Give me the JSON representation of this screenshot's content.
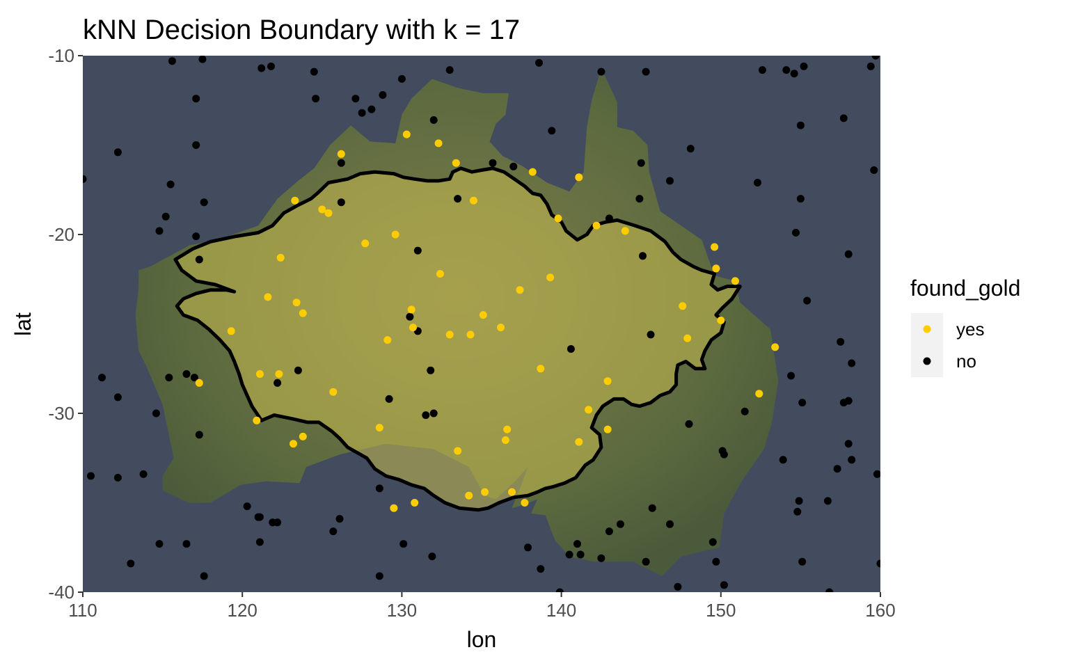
{
  "chart_data": {
    "type": "scatter",
    "title": "kNN Decision Boundary with k =  17",
    "xlabel": "lon",
    "ylabel": "lat",
    "xlim": [
      110,
      160
    ],
    "ylim": [
      -40,
      -10
    ],
    "x_ticks": [
      "110",
      "120",
      "130",
      "140",
      "150",
      "160"
    ],
    "y_ticks": [
      "-10",
      "-20",
      "-30",
      "-40"
    ],
    "grid": false,
    "background": "Australia map image",
    "legend": {
      "title": "found_gold",
      "position": "right",
      "entries": [
        {
          "label": "yes",
          "color": "#FFCC00"
        },
        {
          "label": "no",
          "color": "#000000"
        }
      ]
    },
    "series": [
      {
        "name": "yes",
        "color": "#FFCC00",
        "points": [
          [
            130.3,
            -14.4
          ],
          [
            132.3,
            -14.9
          ],
          [
            126.2,
            -15.5
          ],
          [
            133.4,
            -16.0
          ],
          [
            138.2,
            -16.5
          ],
          [
            141.1,
            -16.8
          ],
          [
            123.3,
            -18.1
          ],
          [
            125.0,
            -18.6
          ],
          [
            125.4,
            -18.8
          ],
          [
            134.5,
            -18.1
          ],
          [
            139.8,
            -19.1
          ],
          [
            142.2,
            -19.5
          ],
          [
            144.0,
            -19.8
          ],
          [
            127.7,
            -20.5
          ],
          [
            129.6,
            -20.0
          ],
          [
            149.6,
            -20.7
          ],
          [
            122.4,
            -21.3
          ],
          [
            149.7,
            -21.9
          ],
          [
            132.4,
            -22.2
          ],
          [
            139.3,
            -22.4
          ],
          [
            150.9,
            -22.6
          ],
          [
            137.4,
            -23.1
          ],
          [
            121.6,
            -23.5
          ],
          [
            123.4,
            -23.8
          ],
          [
            147.6,
            -24.0
          ],
          [
            123.8,
            -24.4
          ],
          [
            130.6,
            -24.2
          ],
          [
            130.7,
            -25.2
          ],
          [
            135.1,
            -24.5
          ],
          [
            119.3,
            -25.4
          ],
          [
            133.0,
            -25.6
          ],
          [
            134.3,
            -25.6
          ],
          [
            136.2,
            -25.2
          ],
          [
            150.0,
            -24.8
          ],
          [
            147.9,
            -25.8
          ],
          [
            129.1,
            -25.9
          ],
          [
            153.4,
            -26.3
          ],
          [
            138.7,
            -27.5
          ],
          [
            121.1,
            -27.8
          ],
          [
            122.3,
            -27.8
          ],
          [
            117.3,
            -28.3
          ],
          [
            142.9,
            -28.2
          ],
          [
            152.4,
            -28.9
          ],
          [
            125.7,
            -28.8
          ],
          [
            141.7,
            -29.8
          ],
          [
            120.9,
            -30.4
          ],
          [
            128.6,
            -30.8
          ],
          [
            136.6,
            -30.9
          ],
          [
            142.9,
            -30.9
          ],
          [
            123.2,
            -31.7
          ],
          [
            123.8,
            -31.3
          ],
          [
            136.5,
            -31.5
          ],
          [
            141.1,
            -31.6
          ],
          [
            133.5,
            -32.1
          ],
          [
            135.2,
            -34.4
          ],
          [
            136.9,
            -34.4
          ],
          [
            134.2,
            -34.6
          ],
          [
            130.8,
            -35.0
          ],
          [
            129.5,
            -35.3
          ],
          [
            137.7,
            -35.0
          ]
        ]
      },
      {
        "name": "no",
        "color": "#000000",
        "points": [
          [
            115.6,
            -10.3
          ],
          [
            117.5,
            -10.2
          ],
          [
            121.2,
            -10.7
          ],
          [
            121.8,
            -10.6
          ],
          [
            124.5,
            -10.9
          ],
          [
            130.0,
            -11.3
          ],
          [
            133.0,
            -10.8
          ],
          [
            138.6,
            -10.4
          ],
          [
            142.5,
            -10.9
          ],
          [
            145.3,
            -10.9
          ],
          [
            152.6,
            -10.8
          ],
          [
            154.1,
            -10.8
          ],
          [
            154.6,
            -11.0
          ],
          [
            155.2,
            -10.6
          ],
          [
            159.4,
            -10.6
          ],
          [
            159.7,
            -10.0
          ],
          [
            117.1,
            -12.4
          ],
          [
            124.6,
            -12.4
          ],
          [
            127.1,
            -12.4
          ],
          [
            128.8,
            -12.2
          ],
          [
            127.5,
            -13.2
          ],
          [
            128.1,
            -13.0
          ],
          [
            132.0,
            -13.6
          ],
          [
            155.0,
            -13.9
          ],
          [
            157.7,
            -13.5
          ],
          [
            139.4,
            -14.2
          ],
          [
            117.1,
            -15.0
          ],
          [
            112.2,
            -15.4
          ],
          [
            148.1,
            -15.2
          ],
          [
            126.2,
            -16.0
          ],
          [
            135.7,
            -16.0
          ],
          [
            137.0,
            -16.2
          ],
          [
            145.0,
            -16.0
          ],
          [
            159.6,
            -16.4
          ],
          [
            110.0,
            -16.9
          ],
          [
            115.5,
            -17.2
          ],
          [
            146.8,
            -17.0
          ],
          [
            152.3,
            -17.1
          ],
          [
            133.5,
            -18.0
          ],
          [
            144.9,
            -18.0
          ],
          [
            155.0,
            -18.0
          ],
          [
            117.6,
            -18.2
          ],
          [
            126.2,
            -18.2
          ],
          [
            115.2,
            -19.0
          ],
          [
            143.0,
            -19.1
          ],
          [
            114.8,
            -19.8
          ],
          [
            117.1,
            -20.1
          ],
          [
            154.7,
            -19.9
          ],
          [
            131.0,
            -20.9
          ],
          [
            145.1,
            -21.2
          ],
          [
            158.0,
            -21.1
          ],
          [
            117.3,
            -21.4
          ],
          [
            155.4,
            -23.7
          ],
          [
            130.5,
            -24.6
          ],
          [
            131.0,
            -25.4
          ],
          [
            145.6,
            -25.6
          ],
          [
            157.5,
            -26.0
          ],
          [
            140.6,
            -26.4
          ],
          [
            158.2,
            -27.2
          ],
          [
            111.2,
            -28.0
          ],
          [
            115.4,
            -28.0
          ],
          [
            116.5,
            -27.8
          ],
          [
            117.0,
            -28.0
          ],
          [
            122.2,
            -28.3
          ],
          [
            123.5,
            -27.6
          ],
          [
            131.8,
            -27.6
          ],
          [
            154.4,
            -27.9
          ],
          [
            112.2,
            -29.1
          ],
          [
            129.2,
            -29.2
          ],
          [
            151.5,
            -29.9
          ],
          [
            155.1,
            -29.4
          ],
          [
            157.7,
            -29.4
          ],
          [
            158.0,
            -29.3
          ],
          [
            114.6,
            -30.0
          ],
          [
            131.5,
            -30.1
          ],
          [
            132.0,
            -30.0
          ],
          [
            148.0,
            -30.6
          ],
          [
            117.3,
            -31.2
          ],
          [
            158.0,
            -31.7
          ],
          [
            150.1,
            -32.1
          ],
          [
            150.2,
            -32.3
          ],
          [
            153.9,
            -32.6
          ],
          [
            158.2,
            -32.6
          ],
          [
            157.3,
            -33.1
          ],
          [
            110.5,
            -33.5
          ],
          [
            112.2,
            -33.6
          ],
          [
            113.8,
            -33.4
          ],
          [
            159.8,
            -33.4
          ],
          [
            154.9,
            -34.9
          ],
          [
            128.6,
            -34.2
          ],
          [
            120.3,
            -35.2
          ],
          [
            145.7,
            -35.3
          ],
          [
            156.7,
            -34.9
          ],
          [
            121.0,
            -35.8
          ],
          [
            121.1,
            -35.8
          ],
          [
            126.1,
            -35.9
          ],
          [
            143.7,
            -36.2
          ],
          [
            154.8,
            -35.5
          ],
          [
            121.9,
            -36.1
          ],
          [
            122.2,
            -36.1
          ],
          [
            125.7,
            -36.6
          ],
          [
            143.0,
            -36.6
          ],
          [
            146.8,
            -36.2
          ],
          [
            121.1,
            -37.2
          ],
          [
            114.8,
            -37.3
          ],
          [
            116.5,
            -37.3
          ],
          [
            130.1,
            -37.3
          ],
          [
            137.9,
            -37.5
          ],
          [
            141.0,
            -37.3
          ],
          [
            149.5,
            -37.2
          ],
          [
            131.9,
            -38.0
          ],
          [
            140.5,
            -37.9
          ],
          [
            141.2,
            -37.9
          ],
          [
            142.5,
            -38.1
          ],
          [
            113.0,
            -38.4
          ],
          [
            145.3,
            -38.3
          ],
          [
            149.7,
            -38.3
          ],
          [
            155.1,
            -38.3
          ],
          [
            160.0,
            -38.4
          ],
          [
            138.7,
            -38.7
          ],
          [
            117.6,
            -39.1
          ],
          [
            128.6,
            -39.1
          ],
          [
            147.3,
            -39.7
          ],
          [
            150.2,
            -39.6
          ],
          [
            156.8,
            -40.0
          ],
          [
            139.9,
            -40.0
          ]
        ]
      }
    ],
    "decision_boundary": {
      "color": "#000000",
      "fill": "#C8BE50",
      "polygon": [
        [
          115.9,
          -24.0
        ],
        [
          116.3,
          -23.6
        ],
        [
          117.1,
          -23.3
        ],
        [
          118.0,
          -23.1
        ],
        [
          119.0,
          -23.1
        ],
        [
          119.5,
          -23.2
        ],
        [
          118.3,
          -22.8
        ],
        [
          117.1,
          -22.6
        ],
        [
          116.2,
          -22.0
        ],
        [
          115.8,
          -21.4
        ],
        [
          116.9,
          -20.8
        ],
        [
          118.0,
          -20.4
        ],
        [
          119.6,
          -20.1
        ],
        [
          121.0,
          -19.9
        ],
        [
          121.9,
          -19.5
        ],
        [
          122.6,
          -18.8
        ],
        [
          123.4,
          -18.4
        ],
        [
          124.3,
          -18.0
        ],
        [
          124.7,
          -17.7
        ],
        [
          125.4,
          -17.1
        ],
        [
          126.6,
          -16.9
        ],
        [
          127.4,
          -16.6
        ],
        [
          128.3,
          -16.5
        ],
        [
          129.5,
          -16.6
        ],
        [
          130.1,
          -16.8
        ],
        [
          130.8,
          -16.9
        ],
        [
          131.6,
          -17.0
        ],
        [
          132.3,
          -17.0
        ],
        [
          133.0,
          -16.9
        ],
        [
          133.2,
          -16.5
        ],
        [
          133.7,
          -16.3
        ],
        [
          134.4,
          -16.5
        ],
        [
          135.0,
          -16.4
        ],
        [
          135.7,
          -16.3
        ],
        [
          136.4,
          -16.5
        ],
        [
          136.9,
          -16.8
        ],
        [
          137.7,
          -17.3
        ],
        [
          138.2,
          -17.7
        ],
        [
          138.7,
          -17.8
        ],
        [
          139.1,
          -18.3
        ],
        [
          139.4,
          -18.9
        ],
        [
          140.0,
          -19.3
        ],
        [
          140.3,
          -19.8
        ],
        [
          141.0,
          -20.3
        ],
        [
          141.6,
          -20.0
        ],
        [
          142.0,
          -19.5
        ],
        [
          142.8,
          -19.3
        ],
        [
          143.5,
          -19.2
        ],
        [
          144.6,
          -19.5
        ],
        [
          145.6,
          -19.8
        ],
        [
          146.5,
          -20.4
        ],
        [
          147.0,
          -21.0
        ],
        [
          147.5,
          -21.4
        ],
        [
          148.3,
          -21.8
        ],
        [
          148.8,
          -22.0
        ],
        [
          149.6,
          -22.2
        ],
        [
          149.4,
          -22.8
        ],
        [
          149.8,
          -23.1
        ],
        [
          150.4,
          -22.9
        ],
        [
          151.2,
          -22.9
        ],
        [
          150.7,
          -23.6
        ],
        [
          150.1,
          -24.1
        ],
        [
          149.7,
          -24.5
        ],
        [
          150.2,
          -24.9
        ],
        [
          150.0,
          -25.5
        ],
        [
          149.4,
          -25.9
        ],
        [
          149.0,
          -26.5
        ],
        [
          148.8,
          -27.0
        ],
        [
          149.0,
          -27.5
        ],
        [
          148.4,
          -27.5
        ],
        [
          147.8,
          -27.1
        ],
        [
          147.3,
          -27.3
        ],
        [
          147.2,
          -27.8
        ],
        [
          147.2,
          -28.4
        ],
        [
          146.8,
          -28.8
        ],
        [
          146.2,
          -29.0
        ],
        [
          145.6,
          -29.4
        ],
        [
          144.9,
          -29.6
        ],
        [
          144.4,
          -29.5
        ],
        [
          143.9,
          -29.2
        ],
        [
          143.3,
          -29.2
        ],
        [
          142.6,
          -29.6
        ],
        [
          142.2,
          -30.1
        ],
        [
          141.9,
          -30.8
        ],
        [
          142.4,
          -31.2
        ],
        [
          142.5,
          -31.9
        ],
        [
          142.0,
          -32.6
        ],
        [
          141.5,
          -32.9
        ],
        [
          140.9,
          -33.6
        ],
        [
          140.2,
          -33.9
        ],
        [
          139.5,
          -34.1
        ],
        [
          139.0,
          -34.2
        ],
        [
          138.5,
          -34.4
        ],
        [
          137.9,
          -34.6
        ],
        [
          137.0,
          -34.7
        ],
        [
          136.1,
          -35.0
        ],
        [
          135.4,
          -35.3
        ],
        [
          134.8,
          -35.4
        ],
        [
          133.6,
          -35.3
        ],
        [
          132.7,
          -35.0
        ],
        [
          132.0,
          -34.6
        ],
        [
          131.4,
          -34.2
        ],
        [
          130.6,
          -34.0
        ],
        [
          129.8,
          -33.7
        ],
        [
          129.0,
          -33.5
        ],
        [
          128.3,
          -33.1
        ],
        [
          127.8,
          -32.5
        ],
        [
          127.2,
          -32.2
        ],
        [
          126.6,
          -31.9
        ],
        [
          126.1,
          -31.4
        ],
        [
          125.6,
          -31.0
        ],
        [
          124.8,
          -30.5
        ],
        [
          124.1,
          -30.5
        ],
        [
          123.1,
          -30.3
        ],
        [
          122.0,
          -30.1
        ],
        [
          121.2,
          -30.4
        ],
        [
          120.6,
          -29.6
        ],
        [
          120.3,
          -29.0
        ],
        [
          120.0,
          -28.4
        ],
        [
          119.8,
          -27.8
        ],
        [
          119.5,
          -27.1
        ],
        [
          119.2,
          -26.5
        ],
        [
          118.6,
          -25.9
        ],
        [
          117.9,
          -25.3
        ],
        [
          117.2,
          -24.8
        ],
        [
          116.3,
          -24.5
        ]
      ]
    }
  }
}
